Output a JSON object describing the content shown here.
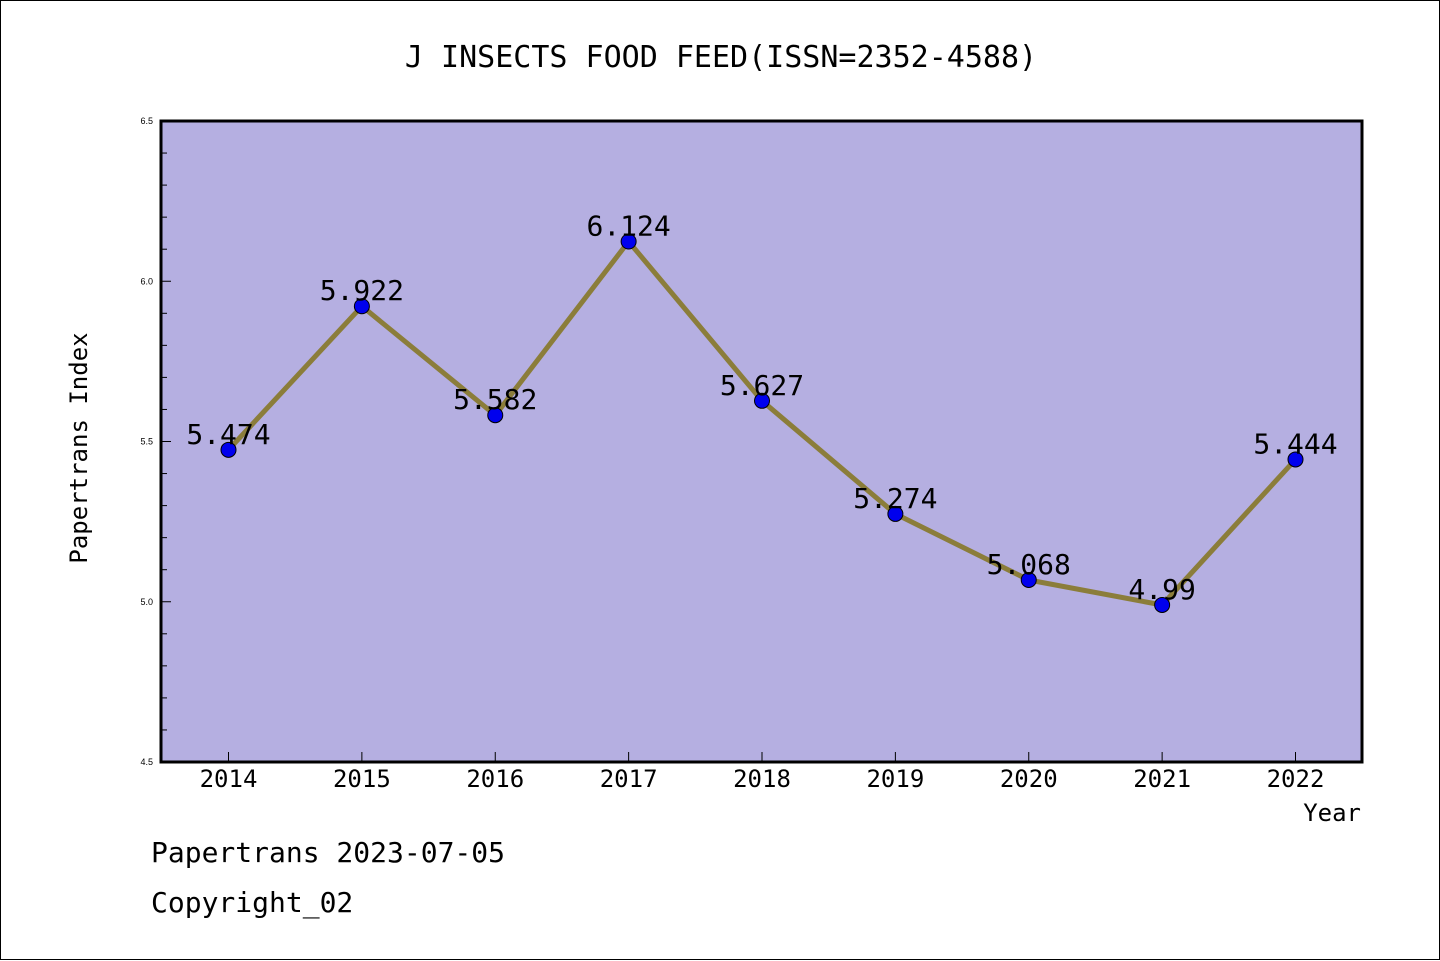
{
  "chart_data": {
    "type": "line",
    "title": "J INSECTS FOOD FEED(ISSN=2352-4588)",
    "xlabel": "Year",
    "ylabel": "Papertrans Index",
    "categories": [
      "2014",
      "2015",
      "2016",
      "2017",
      "2018",
      "2019",
      "2020",
      "2021",
      "2022"
    ],
    "series": [
      {
        "values": [
          5.474,
          5.922,
          5.582,
          6.124,
          5.627,
          5.274,
          5.068,
          4.99,
          5.444
        ],
        "labels": [
          "5.474",
          "5.922",
          "5.582",
          "6.124",
          "5.627",
          "5.274",
          "5.068",
          "4.99",
          "5.444"
        ]
      }
    ],
    "ylim": [
      4.5,
      6.5
    ],
    "y_ticks": [
      "4.5",
      "5.0",
      "5.5",
      "6.0",
      "6.5"
    ],
    "grid": false,
    "colors": {
      "plot_background": "#b5afe1",
      "line": "#8b7d3a",
      "marker": "#0000ee"
    }
  },
  "footer": {
    "line1": "Papertrans 2023-07-05",
    "line2": "Copyright_02"
  }
}
